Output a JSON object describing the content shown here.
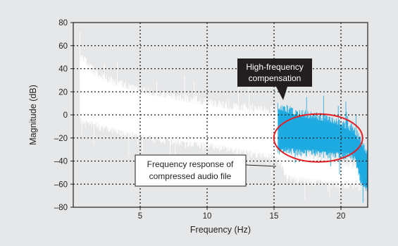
{
  "chart_data": {
    "type": "line",
    "xlabel": "Frequency (Hz)",
    "ylabel": "Magnitude (dB)",
    "xlim": [
      0,
      22
    ],
    "ylim": [
      -80,
      80
    ],
    "x_ticks": [
      5,
      10,
      15,
      20
    ],
    "y_ticks": [
      80,
      60,
      40,
      20,
      0,
      -20,
      -40,
      -60,
      -80
    ],
    "y_tick_labels": [
      "80",
      "60",
      "40",
      "20",
      "0",
      "–20",
      "–40",
      "–60",
      "–80"
    ],
    "grid": true,
    "series": [
      {
        "color": "#ffffff",
        "x": [
          0.5,
          2,
          4,
          6,
          8,
          10,
          12,
          14,
          15.3,
          16,
          18,
          20,
          21.5
        ],
        "upper": [
          48,
          30,
          22,
          16,
          12,
          8,
          4,
          2,
          0,
          -38,
          -40,
          -44,
          -48
        ],
        "lower": [
          -2,
          -8,
          -14,
          -18,
          -22,
          -24,
          -28,
          -32,
          -36,
          -52,
          -56,
          -58,
          -60
        ]
      },
      {
        "color": "#1ba9e1",
        "x": [
          15.3,
          16,
          17,
          18,
          19,
          20,
          21,
          21.5,
          22
        ],
        "upper": [
          4,
          2,
          -2,
          -4,
          -6,
          -10,
          -16,
          -26,
          -36
        ],
        "lower": [
          -30,
          -28,
          -30,
          -30,
          -32,
          -32,
          -34,
          -56,
          -64
        ]
      }
    ],
    "annotations": [
      {
        "text_lines": [
          "High-frequency",
          "compensation"
        ],
        "style": "dark-box"
      },
      {
        "text_lines": [
          "Frequency response of",
          "compressed audio file"
        ],
        "style": "light-box"
      }
    ],
    "highlight_color": "#e31e24"
  }
}
